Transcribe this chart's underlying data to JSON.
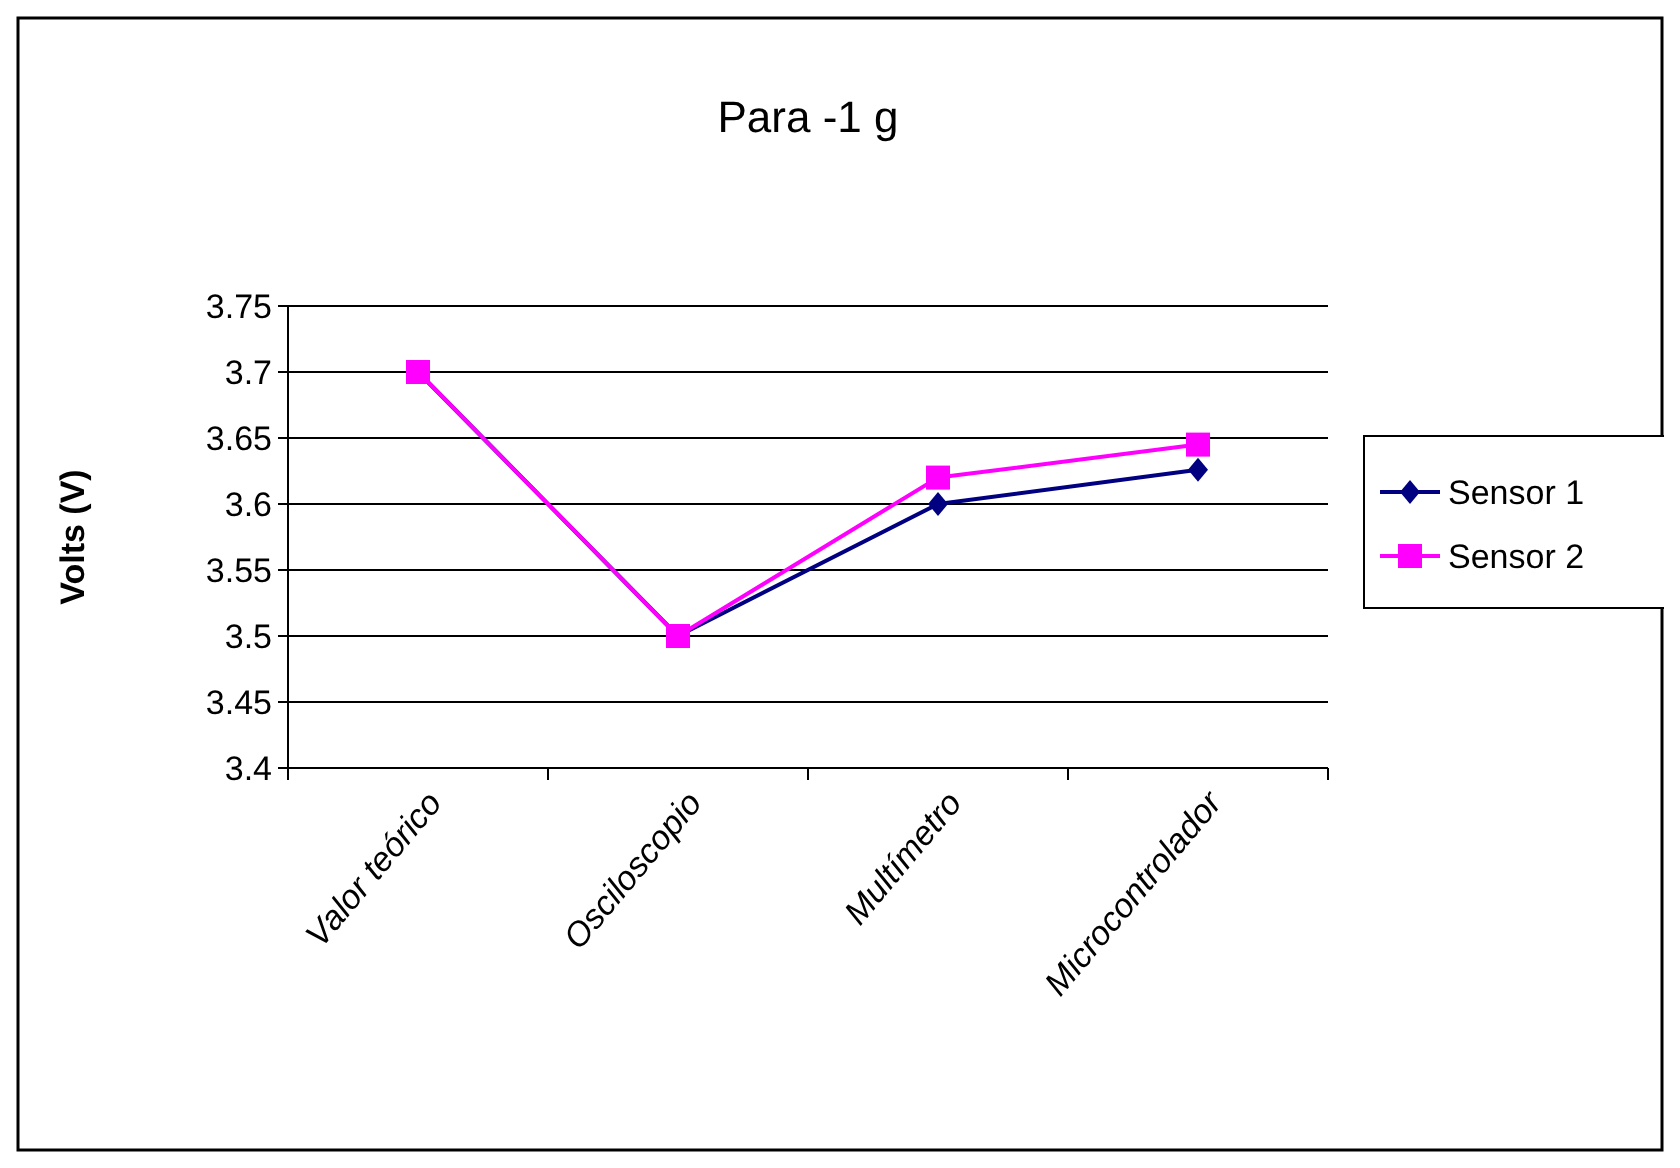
{
  "chart_data": {
    "type": "line",
    "title": "Para -1 g",
    "ylabel": "Volts (V)",
    "categories": [
      "Valor teórico",
      "Osciloscopio",
      "Multímetro",
      "Microcontrolador"
    ],
    "series": [
      {
        "name": "Sensor 1",
        "color": "#000080",
        "values": [
          3.7,
          3.5,
          3.6,
          3.626
        ],
        "marker": "diamond"
      },
      {
        "name": "Sensor 2",
        "color": "#ff00ff",
        "values": [
          3.7,
          3.5,
          3.62,
          3.645
        ],
        "marker": "square"
      }
    ],
    "ylim": [
      3.4,
      3.75
    ],
    "yticks": [
      3.4,
      3.45,
      3.5,
      3.55,
      3.6,
      3.65,
      3.7,
      3.75
    ],
    "grid": "y",
    "legend": "right"
  }
}
